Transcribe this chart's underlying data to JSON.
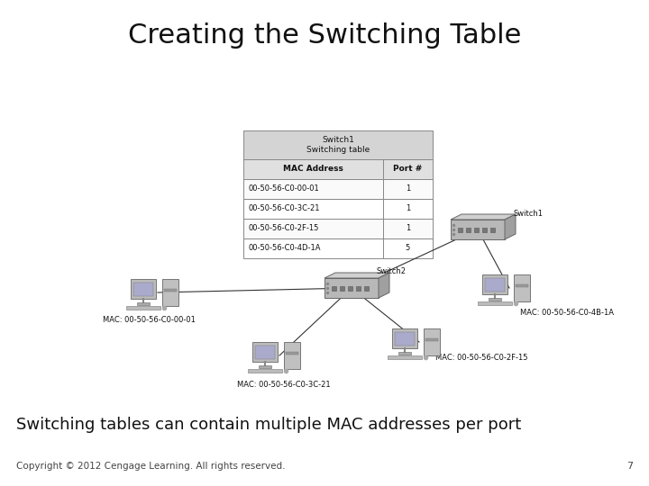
{
  "title": "Creating the Switching Table",
  "subtitle": "Switching tables can contain multiple MAC addresses per port",
  "copyright": "Copyright © 2012 Cengage Learning. All rights reserved.",
  "page_num": "7",
  "background_color": "#ffffff",
  "table_title": "Switch1\nSwitching table",
  "table_headers": [
    "MAC Address",
    "Port #"
  ],
  "table_rows": [
    [
      "00-50-56-C0-00-01",
      "1"
    ],
    [
      "00-50-56-C0-3C-21",
      "1"
    ],
    [
      "00-50-56-C0-2F-15",
      "1"
    ],
    [
      "00-50-56-C0-4D-1A",
      "5"
    ]
  ],
  "switch1_label": "Switch1",
  "switch2_label": "Switch2",
  "title_fontsize": 22,
  "subtitle_fontsize": 13,
  "copyright_fontsize": 7.5,
  "table_fontsize": 6.5,
  "label_fontsize": 6
}
